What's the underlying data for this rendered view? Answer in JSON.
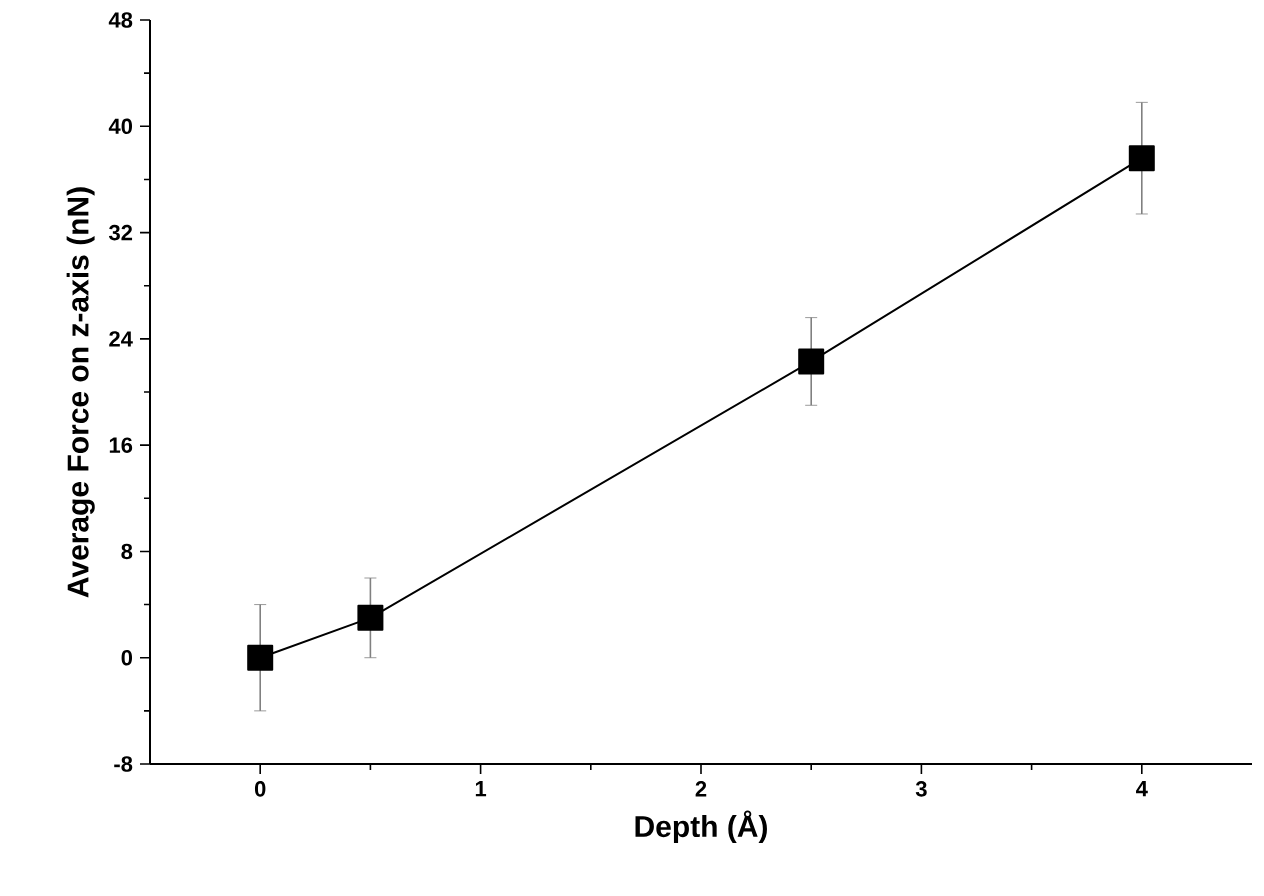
{
  "chart_data": {
    "type": "line",
    "xlabel": "Depth (Å)",
    "ylabel": "Average Force on z-axis (nN)",
    "x": [
      0,
      0.5,
      2.5,
      4
    ],
    "series": [
      {
        "color": "#000000",
        "values": [
          0,
          3,
          22.3,
          37.6
        ],
        "errors": [
          4,
          3,
          3.3,
          4.2
        ]
      }
    ],
    "xlim": [
      -0.5,
      4.5
    ],
    "xticks": [
      0,
      1,
      2,
      3,
      4
    ],
    "ylim": [
      -8,
      48
    ],
    "yticks": [
      -8,
      0,
      8,
      16,
      24,
      32,
      40,
      48
    ],
    "marker": "square",
    "line_style": "solid"
  }
}
